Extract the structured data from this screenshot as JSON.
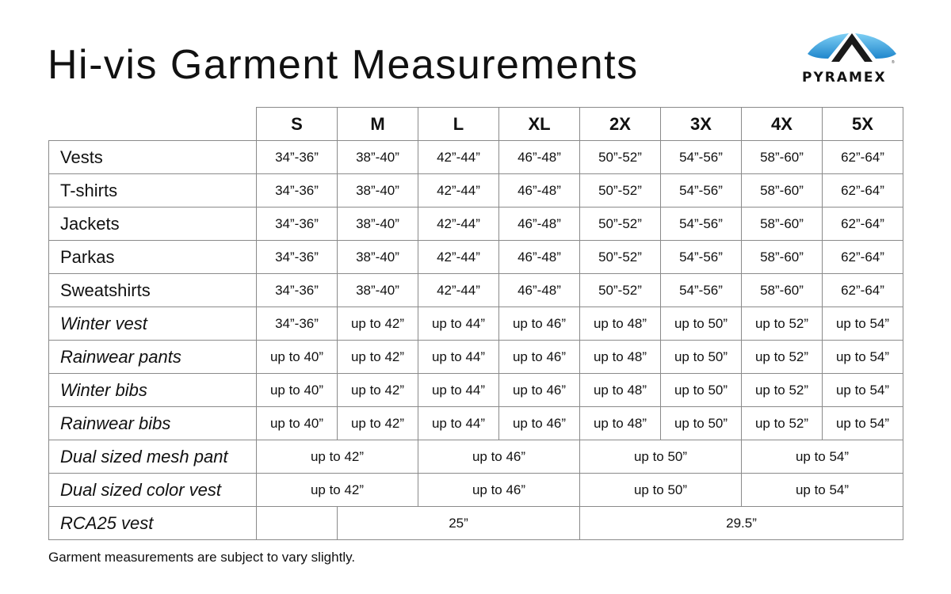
{
  "title": "Hi-vis Garment Measurements",
  "brand": {
    "name": "PYRAMEX",
    "colors": {
      "blue": "#2f9ee0",
      "dark": "#1a1a1a"
    }
  },
  "sizes": [
    "S",
    "M",
    "L",
    "XL",
    "2X",
    "3X",
    "4X",
    "5X"
  ],
  "rows": [
    {
      "label": "Vests",
      "italic": false,
      "cells": [
        {
          "v": "34”-36”"
        },
        {
          "v": "38”-40”"
        },
        {
          "v": "42”-44”"
        },
        {
          "v": "46”-48”"
        },
        {
          "v": "50”-52”"
        },
        {
          "v": "54”-56”"
        },
        {
          "v": "58”-60”"
        },
        {
          "v": "62”-64”"
        }
      ]
    },
    {
      "label": "T-shirts",
      "italic": false,
      "cells": [
        {
          "v": "34”-36”"
        },
        {
          "v": "38”-40”"
        },
        {
          "v": "42”-44”"
        },
        {
          "v": "46”-48”"
        },
        {
          "v": "50”-52”"
        },
        {
          "v": "54”-56”"
        },
        {
          "v": "58”-60”"
        },
        {
          "v": "62”-64”"
        }
      ]
    },
    {
      "label": "Jackets",
      "italic": false,
      "cells": [
        {
          "v": "34”-36”"
        },
        {
          "v": "38”-40”"
        },
        {
          "v": "42”-44”"
        },
        {
          "v": "46”-48”"
        },
        {
          "v": "50”-52”"
        },
        {
          "v": "54”-56”"
        },
        {
          "v": "58”-60”"
        },
        {
          "v": "62”-64”"
        }
      ]
    },
    {
      "label": "Parkas",
      "italic": false,
      "cells": [
        {
          "v": "34”-36”"
        },
        {
          "v": "38”-40”"
        },
        {
          "v": "42”-44”"
        },
        {
          "v": "46”-48”"
        },
        {
          "v": "50”-52”"
        },
        {
          "v": "54”-56”"
        },
        {
          "v": "58”-60”"
        },
        {
          "v": "62”-64”"
        }
      ]
    },
    {
      "label": "Sweatshirts",
      "italic": false,
      "cells": [
        {
          "v": "34”-36”"
        },
        {
          "v": "38”-40”"
        },
        {
          "v": "42”-44”"
        },
        {
          "v": "46”-48”"
        },
        {
          "v": "50”-52”"
        },
        {
          "v": "54”-56”"
        },
        {
          "v": "58”-60”"
        },
        {
          "v": "62”-64”"
        }
      ]
    },
    {
      "label": "Winter vest",
      "italic": true,
      "cells": [
        {
          "v": "34”-36”"
        },
        {
          "v": "up to 42”"
        },
        {
          "v": "up to 44”"
        },
        {
          "v": "up to 46”"
        },
        {
          "v": "up to 48”"
        },
        {
          "v": "up to 50”"
        },
        {
          "v": "up to 52”"
        },
        {
          "v": "up to 54”"
        }
      ]
    },
    {
      "label": "Rainwear pants",
      "italic": true,
      "cells": [
        {
          "v": "up to 40”"
        },
        {
          "v": "up to 42”"
        },
        {
          "v": "up to 44”"
        },
        {
          "v": "up to 46”"
        },
        {
          "v": "up to 48”"
        },
        {
          "v": "up to 50”"
        },
        {
          "v": "up to 52”"
        },
        {
          "v": "up to 54”"
        }
      ]
    },
    {
      "label": "Winter bibs",
      "italic": true,
      "cells": [
        {
          "v": "up to 40”"
        },
        {
          "v": "up to 42”"
        },
        {
          "v": "up to 44”"
        },
        {
          "v": "up to 46”"
        },
        {
          "v": "up to 48”"
        },
        {
          "v": "up to 50”"
        },
        {
          "v": "up to 52”"
        },
        {
          "v": "up to 54”"
        }
      ]
    },
    {
      "label": "Rainwear bibs",
      "italic": true,
      "cells": [
        {
          "v": "up to 40”"
        },
        {
          "v": "up to 42”"
        },
        {
          "v": "up to 44”"
        },
        {
          "v": "up to 46”"
        },
        {
          "v": "up to 48”"
        },
        {
          "v": "up to 50”"
        },
        {
          "v": "up to 52”"
        },
        {
          "v": "up to 54”"
        }
      ]
    },
    {
      "label": "Dual sized mesh pant",
      "italic": true,
      "cells": [
        {
          "v": "up to 42”",
          "span": 2
        },
        {
          "v": "up to 46”",
          "span": 2
        },
        {
          "v": "up to 50”",
          "span": 2
        },
        {
          "v": "up to 54”",
          "span": 2
        }
      ]
    },
    {
      "label": "Dual sized color vest",
      "italic": true,
      "cells": [
        {
          "v": "up to 42”",
          "span": 2
        },
        {
          "v": "up to 46”",
          "span": 2
        },
        {
          "v": "up to 50”",
          "span": 2
        },
        {
          "v": "up to 54”",
          "span": 2
        }
      ]
    },
    {
      "label": "RCA25 vest",
      "italic": true,
      "cells": [
        {
          "v": ""
        },
        {
          "v": "25”",
          "span": 3
        },
        {
          "v": "29.5”",
          "span": 4
        }
      ]
    }
  ],
  "note": "Garment measurements are subject to vary slightly."
}
